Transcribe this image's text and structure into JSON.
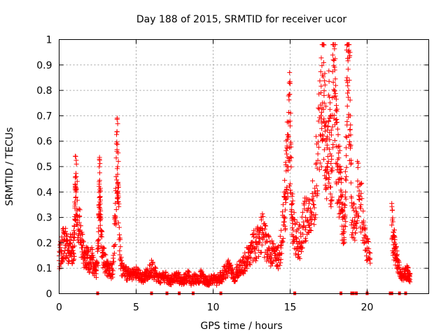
{
  "chart_data": {
    "type": "scatter",
    "title": "Day 188 of 2015, SRMTID for receiver ucor",
    "xlabel": "GPS time / hours",
    "ylabel": "SRMTID / TECUs",
    "xlim": [
      0,
      24
    ],
    "ylim": [
      0,
      1
    ],
    "xticks": [
      0,
      5,
      10,
      15,
      20
    ],
    "xtick_labels": [
      "0",
      "5",
      "10",
      "15",
      "20"
    ],
    "yticks": [
      0,
      0.1,
      0.2,
      0.3,
      0.4,
      0.5,
      0.6,
      0.7,
      0.8,
      0.9,
      1
    ],
    "ytick_labels": [
      "0",
      "0.1",
      "0.2",
      "0.3",
      "0.4",
      "0.5",
      "0.6",
      "0.7",
      "0.8",
      "0.9",
      "1"
    ],
    "grid": true,
    "marker": "+",
    "color": "#ff0000",
    "series": [
      {
        "name": "SRMTID",
        "x": [
          0.0,
          0.15,
          0.3,
          0.45,
          0.6,
          0.75,
          0.9,
          1.0,
          1.05,
          1.1,
          1.2,
          1.35,
          1.5,
          1.65,
          1.8,
          1.95,
          2.1,
          2.25,
          2.4,
          2.55,
          2.6,
          2.65,
          2.7,
          2.85,
          3.0,
          3.15,
          3.3,
          3.5,
          3.65,
          3.75,
          3.8,
          3.85,
          4.0,
          4.2,
          4.4,
          4.6,
          4.8,
          5.0,
          5.2,
          5.4,
          5.6,
          5.8,
          6.0,
          6.2,
          6.4,
          6.6,
          6.8,
          7.0,
          7.2,
          7.4,
          7.6,
          7.8,
          8.0,
          8.2,
          8.4,
          8.6,
          8.8,
          9.0,
          9.2,
          9.4,
          9.6,
          9.8,
          10.0,
          10.2,
          10.4,
          10.6,
          10.8,
          11.0,
          11.2,
          11.4,
          11.6,
          11.8,
          12.0,
          12.2,
          12.4,
          12.6,
          12.8,
          13.0,
          13.2,
          13.4,
          13.6,
          13.8,
          14.0,
          14.2,
          14.4,
          14.6,
          14.7,
          14.8,
          14.9,
          15.0,
          15.1,
          15.2,
          15.4,
          15.6,
          15.8,
          16.0,
          16.2,
          16.4,
          16.6,
          16.8,
          17.0,
          17.1,
          17.2,
          17.3,
          17.4,
          17.5,
          17.6,
          17.7,
          17.8,
          17.9,
          18.0,
          18.1,
          18.2,
          18.3,
          18.4,
          18.5,
          18.6,
          18.7,
          18.8,
          18.9,
          19.0,
          19.2,
          19.4,
          19.6,
          19.8,
          20.0,
          20.2,
          21.6,
          21.7,
          21.8,
          21.9,
          22.0,
          22.2,
          22.4,
          22.6,
          22.7
        ],
        "y": [
          0.13,
          0.17,
          0.21,
          0.19,
          0.16,
          0.2,
          0.17,
          0.22,
          0.42,
          0.4,
          0.3,
          0.25,
          0.18,
          0.14,
          0.15,
          0.12,
          0.14,
          0.11,
          0.09,
          0.18,
          0.44,
          0.38,
          0.25,
          0.15,
          0.12,
          0.1,
          0.09,
          0.09,
          0.3,
          0.56,
          0.5,
          0.38,
          0.11,
          0.09,
          0.08,
          0.07,
          0.07,
          0.08,
          0.07,
          0.06,
          0.07,
          0.08,
          0.1,
          0.08,
          0.07,
          0.06,
          0.07,
          0.06,
          0.05,
          0.06,
          0.07,
          0.06,
          0.05,
          0.06,
          0.07,
          0.05,
          0.06,
          0.05,
          0.07,
          0.06,
          0.05,
          0.05,
          0.06,
          0.05,
          0.06,
          0.07,
          0.09,
          0.1,
          0.08,
          0.07,
          0.09,
          0.11,
          0.12,
          0.14,
          0.16,
          0.18,
          0.2,
          0.22,
          0.24,
          0.2,
          0.18,
          0.16,
          0.15,
          0.14,
          0.18,
          0.3,
          0.4,
          0.5,
          0.62,
          0.66,
          0.35,
          0.25,
          0.22,
          0.2,
          0.26,
          0.3,
          0.28,
          0.32,
          0.4,
          0.55,
          0.7,
          0.86,
          0.78,
          0.6,
          0.5,
          0.68,
          0.55,
          0.48,
          0.92,
          0.88,
          0.58,
          0.5,
          0.45,
          0.38,
          0.3,
          0.22,
          0.4,
          0.85,
          0.8,
          0.7,
          0.28,
          0.3,
          0.42,
          0.35,
          0.22,
          0.18,
          0.12,
          0.27,
          0.22,
          0.18,
          0.15,
          0.1,
          0.08,
          0.07,
          0.09,
          0.07
        ]
      }
    ],
    "zero_markers_x": [
      2.5,
      6.0,
      7.0,
      7.8,
      8.7,
      10.5,
      15.3,
      18.3,
      19.0,
      19.1,
      19.3,
      20.0,
      21.5,
      21.6,
      22.1,
      22.5
    ]
  }
}
